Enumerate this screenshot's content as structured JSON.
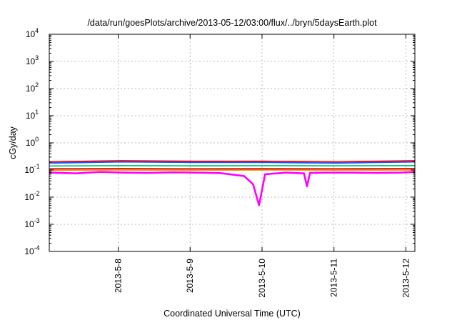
{
  "chart_data": {
    "type": "line",
    "title": "/data/run/goesPlots/archive/2013-05-12/03:00/flux/../bryn/5daysEarth.plot",
    "xlabel": "Coordinated Universal Time (UTC)",
    "ylabel": "cGy/day",
    "x_range": [
      "2013-05-07T01:00",
      "2013-05-12T03:00"
    ],
    "ylim": [
      0.0001,
      10000
    ],
    "yscale": "log",
    "grid": true,
    "x_ticks": [
      "2013-5-8",
      "2013-5-9",
      "2013-5-10",
      "2013-5-11",
      "2013-5-12"
    ],
    "y_ticks": [
      {
        "base": "10",
        "exp": "4"
      },
      {
        "base": "10",
        "exp": "3"
      },
      {
        "base": "10",
        "exp": "2"
      },
      {
        "base": "10",
        "exp": "1"
      },
      {
        "base": "10",
        "exp": "0"
      },
      {
        "base": "10",
        "exp": "-1"
      },
      {
        "base": "10",
        "exp": "-2"
      },
      {
        "base": "10",
        "exp": "-3"
      },
      {
        "base": "10",
        "exp": "-4"
      }
    ],
    "series": [
      {
        "color": "#ff00ff",
        "x": [
          "2013-05-07T01:00",
          "2013-05-07T10:00",
          "2013-05-07T18:00",
          "2013-05-08T02:00",
          "2013-05-08T10:00",
          "2013-05-08T18:00",
          "2013-05-09T02:00",
          "2013-05-09T10:00",
          "2013-05-09T18:00",
          "2013-05-09T21:00",
          "2013-05-09T23:00",
          "2013-05-10T01:00",
          "2013-05-10T08:00",
          "2013-05-10T14:00",
          "2013-05-10T15:00",
          "2013-05-10T16:00",
          "2013-05-10T22:00",
          "2013-05-11T06:00",
          "2013-05-11T14:00",
          "2013-05-11T22:00",
          "2013-05-12T03:00"
        ],
        "values": [
          0.08,
          0.075,
          0.085,
          0.08,
          0.078,
          0.082,
          0.08,
          0.077,
          0.06,
          0.03,
          0.005,
          0.07,
          0.08,
          0.075,
          0.025,
          0.078,
          0.08,
          0.08,
          0.078,
          0.08,
          0.085
        ]
      },
      {
        "color": "#ff8c00",
        "x": [
          "2013-05-07T01:00",
          "2013-05-08T01:00",
          "2013-05-09T01:00",
          "2013-05-10T01:00",
          "2013-05-11T01:00",
          "2013-05-12T03:00"
        ],
        "values": [
          0.098,
          0.1,
          0.099,
          0.1,
          0.099,
          0.1
        ]
      },
      {
        "color": "#cc0000",
        "x": [
          "2013-05-07T01:00",
          "2013-05-08T01:00",
          "2013-05-09T01:00",
          "2013-05-10T01:00",
          "2013-05-11T01:00",
          "2013-05-12T03:00"
        ],
        "values": [
          0.11,
          0.112,
          0.11,
          0.111,
          0.11,
          0.112
        ]
      },
      {
        "color": "#00c080",
        "x": [
          "2013-05-07T01:00",
          "2013-05-08T01:00",
          "2013-05-09T01:00",
          "2013-05-10T01:00",
          "2013-05-11T01:00",
          "2013-05-12T03:00"
        ],
        "values": [
          0.14,
          0.145,
          0.142,
          0.144,
          0.143,
          0.145
        ]
      },
      {
        "color": "#ff0000",
        "x": [
          "2013-05-07T01:00",
          "2013-05-08T01:00",
          "2013-05-09T01:00",
          "2013-05-10T01:00",
          "2013-05-11T01:00",
          "2013-05-12T03:00"
        ],
        "values": [
          0.2,
          0.22,
          0.21,
          0.21,
          0.2,
          0.22
        ]
      },
      {
        "color": "#1e50ff",
        "x": [
          "2013-05-07T01:00",
          "2013-05-08T01:00",
          "2013-05-09T01:00",
          "2013-05-10T01:00",
          "2013-05-11T01:00",
          "2013-05-12T03:00"
        ],
        "values": [
          0.18,
          0.2,
          0.19,
          0.19,
          0.18,
          0.2
        ]
      }
    ]
  }
}
